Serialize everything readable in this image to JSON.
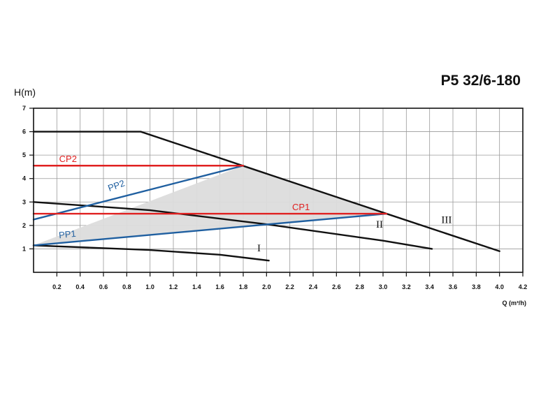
{
  "chart_data": {
    "type": "line",
    "title": "P5 32/6-180",
    "ylabel": "H(m)",
    "xlabel": "Q (m³/h)",
    "xlim": [
      0,
      4.2
    ],
    "ylim": [
      0,
      7
    ],
    "x_ticks": [
      "0.2",
      "0.4",
      "0.6",
      "0.8",
      "1.0",
      "1.2",
      "1.4",
      "1.6",
      "1.8",
      "2.0",
      "2.2",
      "2.4",
      "2.6",
      "2.8",
      "3.0",
      "3.2",
      "3.4",
      "3.6",
      "3.8",
      "4.0",
      "4.2"
    ],
    "y_ticks": [
      "1",
      "2",
      "3",
      "4",
      "5",
      "6",
      "7"
    ],
    "grid": true,
    "operating_area": {
      "fill": "#dcdcdc",
      "points": [
        [
          0,
          1.15
        ],
        [
          1.8,
          4.55
        ],
        [
          3.03,
          2.5
        ]
      ]
    },
    "series": [
      {
        "name": "III",
        "color": "#111111",
        "points": [
          [
            0,
            6
          ],
          [
            0.92,
            6
          ],
          [
            3.03,
            2.5
          ],
          [
            4.0,
            0.9
          ]
        ]
      },
      {
        "name": "II",
        "color": "#111111",
        "points": [
          [
            0,
            3.0
          ],
          [
            1.0,
            2.65
          ],
          [
            2.0,
            2.05
          ],
          [
            3.0,
            1.35
          ],
          [
            3.42,
            1.0
          ]
        ]
      },
      {
        "name": "I",
        "color": "#111111",
        "points": [
          [
            0,
            1.15
          ],
          [
            1.0,
            0.95
          ],
          [
            1.6,
            0.75
          ],
          [
            2.02,
            0.5
          ]
        ]
      },
      {
        "name": "PP2",
        "color": "#1f5fa0",
        "points": [
          [
            0,
            2.25
          ],
          [
            1.8,
            4.55
          ]
        ]
      },
      {
        "name": "PP1",
        "color": "#1f5fa0",
        "points": [
          [
            0,
            1.15
          ],
          [
            3.03,
            2.5
          ]
        ]
      },
      {
        "name": "CP2",
        "color": "#e02020",
        "points": [
          [
            0,
            4.55
          ],
          [
            1.8,
            4.55
          ]
        ]
      },
      {
        "name": "CP1",
        "color": "#e02020",
        "points": [
          [
            0,
            2.5
          ],
          [
            3.03,
            2.5
          ]
        ]
      }
    ],
    "labels": [
      {
        "text": "I",
        "at": [
          1.92,
          0.9
        ]
      },
      {
        "text": "II",
        "at": [
          2.94,
          1.9
        ]
      },
      {
        "text": "III",
        "at": [
          3.5,
          2.1
        ]
      },
      {
        "text": "CP2",
        "at": [
          0.22,
          4.7
        ],
        "color": "#e02020"
      },
      {
        "text": "CP1",
        "at": [
          2.22,
          2.65
        ],
        "color": "#e02020"
      },
      {
        "text": "PP2",
        "at": [
          0.65,
          3.45
        ],
        "color": "#1f5fa0",
        "angle": -20
      },
      {
        "text": "PP1",
        "at": [
          0.22,
          1.45
        ],
        "color": "#1f5fa0",
        "angle": -6
      }
    ]
  }
}
